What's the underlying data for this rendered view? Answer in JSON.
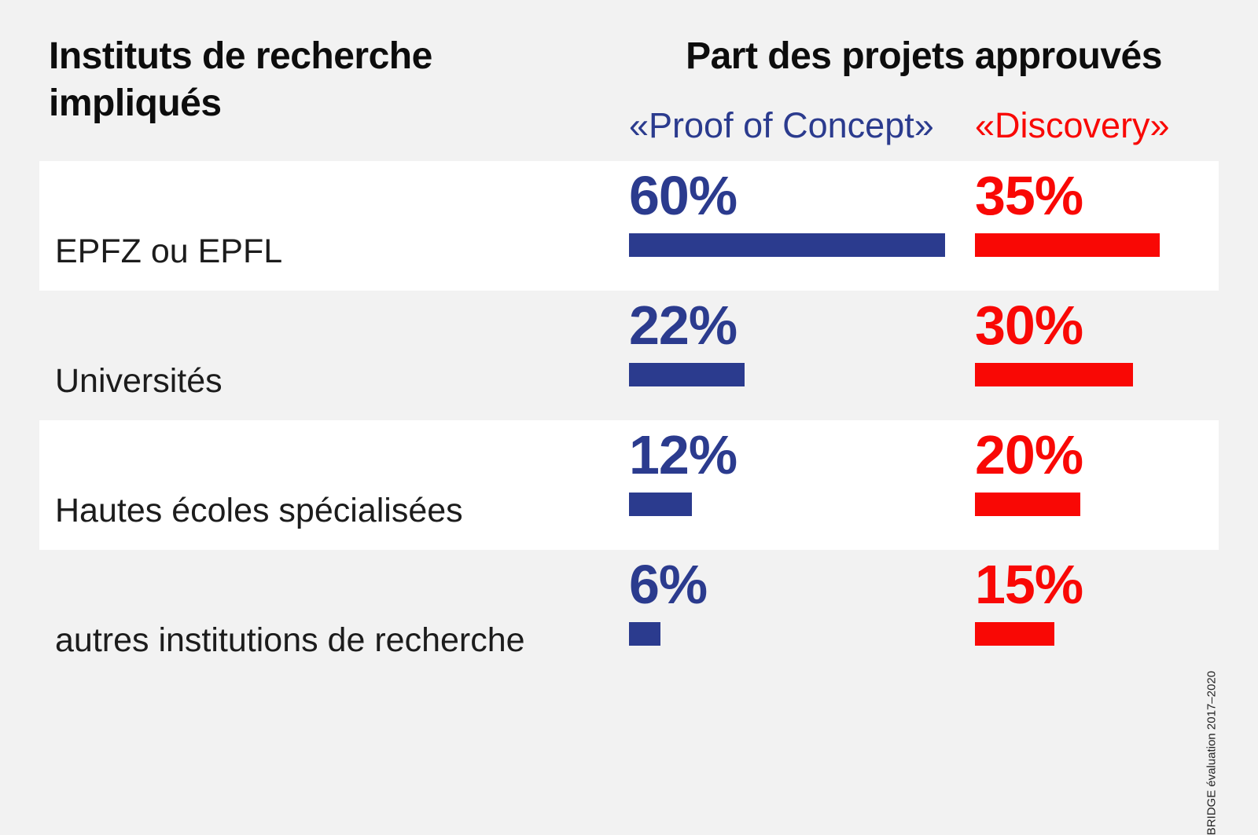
{
  "page": {
    "background": "#f2f2f2",
    "row_highlight": "#ffffff"
  },
  "header": {
    "left_title_line1": "Instituts de recherche",
    "left_title_line2": "impliqués",
    "right_title": "Part des projets approuvés",
    "columns": [
      {
        "label": "«Proof of Concept»",
        "color": "#2b3b8e"
      },
      {
        "label": "«Discovery»",
        "color": "#f90805"
      }
    ]
  },
  "chart_data": {
    "type": "bar",
    "orientation": "horizontal",
    "title": "Part des projets approuvés",
    "row_header": "Instituts de recherche impliqués",
    "categories": [
      "EPFZ ou EPFL",
      "Universités",
      "Hautes écoles spécialisées",
      "autres institutions de recherche"
    ],
    "series": [
      {
        "name": "«Proof of Concept»",
        "color": "#2b3b8e",
        "values": [
          60,
          22,
          12,
          6
        ]
      },
      {
        "name": "«Discovery»",
        "color": "#f90805",
        "values": [
          35,
          30,
          20,
          15
        ]
      }
    ],
    "value_unit": "%",
    "value_range": [
      0,
      100
    ],
    "grid": false,
    "legend_position": "column-headers",
    "source": "BRIDGE évaluation 2017–2020"
  },
  "rows": [
    {
      "label": "EPFZ ou EPFL",
      "poc_label": "60%",
      "poc_value": 60,
      "disc_label": "35%",
      "disc_value": 35
    },
    {
      "label": "Universités",
      "poc_label": "22%",
      "poc_value": 22,
      "disc_label": "30%",
      "disc_value": 30
    },
    {
      "label": "Hautes écoles spécialisées",
      "poc_label": "12%",
      "poc_value": 12,
      "disc_label": "20%",
      "disc_value": 20
    },
    {
      "label": "autres institutions de recherche",
      "poc_label": "6%",
      "poc_value": 6,
      "disc_label": "15%",
      "disc_value": 15
    }
  ],
  "footnote": "BRIDGE évaluation 2017–2020"
}
